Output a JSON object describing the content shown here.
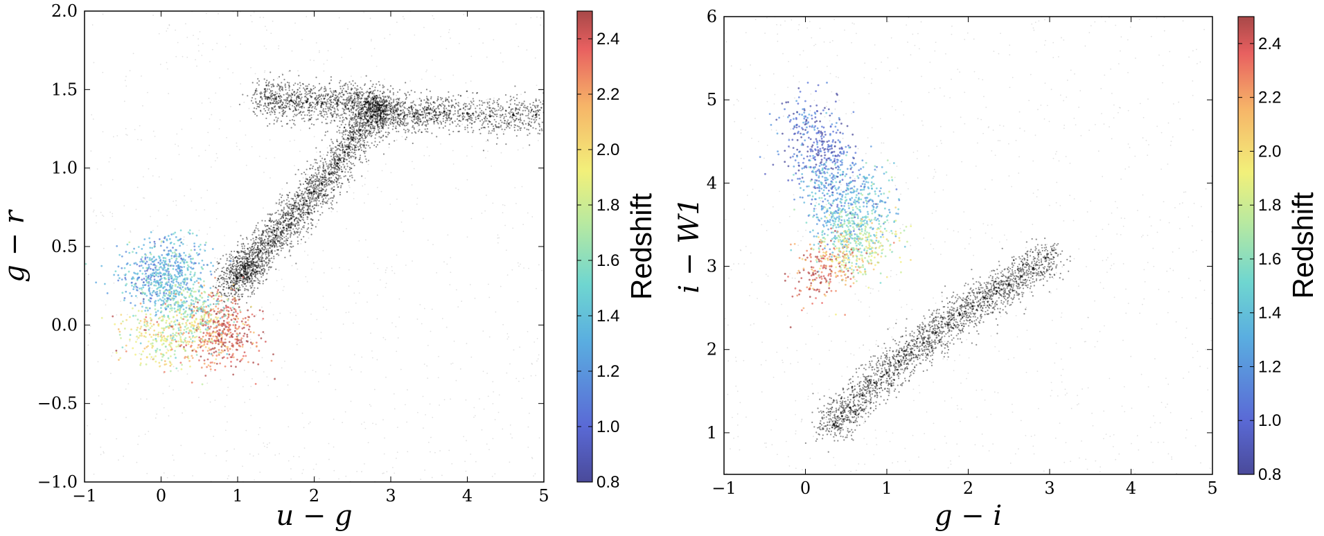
{
  "chart_data": [
    {
      "type": "scatter",
      "xlabel": "u − g",
      "ylabel": "g − r",
      "xlim": [
        -1,
        5
      ],
      "ylim": [
        -1.0,
        2.0
      ],
      "xticks": [
        "−1",
        "0",
        "1",
        "2",
        "3",
        "4",
        "5"
      ],
      "xtick_values": [
        -1,
        0,
        1,
        2,
        3,
        4,
        5
      ],
      "yticks": [
        "−1.0",
        "−0.5",
        "0.0",
        "0.5",
        "1.0",
        "1.5",
        "2.0"
      ],
      "ytick_values": [
        -1.0,
        -0.5,
        0.0,
        0.5,
        1.0,
        1.5,
        2.0
      ],
      "grid": false,
      "colorbar": {
        "label": "Redshift",
        "range": [
          0.8,
          2.5
        ],
        "ticks": [
          "0.8",
          "1.0",
          "1.2",
          "1.4",
          "1.6",
          "1.8",
          "2.0",
          "2.2",
          "2.4"
        ],
        "tick_values": [
          0.8,
          1.0,
          1.2,
          1.4,
          1.6,
          1.8,
          2.0,
          2.2,
          2.4
        ],
        "colormap": "jet"
      },
      "series": [
        {
          "kind": "stars",
          "color": "#000000",
          "x": [
            0.95,
            1.0,
            1.05,
            1.1,
            1.15,
            1.2,
            1.3,
            1.4,
            1.5,
            1.6,
            1.7,
            1.8,
            1.9,
            2.0,
            2.1,
            2.2,
            2.3,
            2.4,
            2.5,
            2.6,
            2.7,
            2.75,
            2.8,
            2.85,
            2.9,
            2.85,
            2.7,
            2.5,
            2.3,
            2.1,
            1.9,
            1.7,
            1.5,
            1.4,
            3.1,
            3.3,
            3.5,
            3.7,
            4.0,
            4.3,
            4.6,
            4.9
          ],
          "y": [
            0.25,
            0.3,
            0.32,
            0.36,
            0.38,
            0.42,
            0.47,
            0.52,
            0.57,
            0.62,
            0.68,
            0.74,
            0.79,
            0.85,
            0.9,
            0.96,
            1.03,
            1.1,
            1.18,
            1.24,
            1.3,
            1.33,
            1.36,
            1.37,
            1.36,
            1.4,
            1.42,
            1.42,
            1.41,
            1.41,
            1.42,
            1.43,
            1.44,
            1.45,
            1.34,
            1.33,
            1.35,
            1.36,
            1.35,
            1.33,
            1.34,
            1.34
          ]
        },
        {
          "kind": "quasars",
          "x": [
            -0.3,
            -0.1,
            0.0,
            0.1,
            0.2,
            0.3,
            -0.2,
            0.0,
            0.2,
            0.4,
            0.6,
            0.7,
            0.8,
            0.9,
            1.0,
            0.1,
            0.3,
            0.5
          ],
          "y": [
            0.3,
            0.35,
            0.25,
            0.3,
            0.2,
            0.15,
            -0.05,
            -0.1,
            -0.05,
            0.0,
            -0.05,
            -0.1,
            0.05,
            0.0,
            -0.1,
            0.45,
            0.4,
            0.1
          ],
          "z": [
            1.3,
            1.2,
            1.3,
            1.4,
            1.5,
            1.5,
            1.9,
            1.9,
            1.8,
            1.9,
            2.3,
            2.4,
            2.3,
            2.4,
            2.4,
            1.4,
            1.3,
            1.6
          ]
        }
      ]
    },
    {
      "type": "scatter",
      "xlabel": "g − i",
      "ylabel": "i − W1",
      "xlim": [
        -1,
        5
      ],
      "ylim": [
        0.5,
        6.0
      ],
      "xticks": [
        "−1",
        "0",
        "1",
        "2",
        "3",
        "4",
        "5"
      ],
      "xtick_values": [
        -1,
        0,
        1,
        2,
        3,
        4,
        5
      ],
      "yticks": [
        "1",
        "2",
        "3",
        "4",
        "5",
        "6"
      ],
      "ytick_values": [
        1,
        2,
        3,
        4,
        5,
        6
      ],
      "grid": false,
      "colorbar": {
        "label": "Redshift",
        "range": [
          0.8,
          2.5
        ],
        "ticks": [
          "0.8",
          "1.0",
          "1.2",
          "1.4",
          "1.6",
          "1.8",
          "2.0",
          "2.2",
          "2.4"
        ],
        "tick_values": [
          0.8,
          1.0,
          1.2,
          1.4,
          1.6,
          1.8,
          2.0,
          2.2,
          2.4
        ],
        "colormap": "jet"
      },
      "series": [
        {
          "kind": "stars",
          "color": "#000000",
          "x": [
            0.35,
            0.45,
            0.55,
            0.7,
            0.85,
            1.0,
            1.15,
            1.3,
            1.45,
            1.6,
            1.75,
            1.9,
            2.05,
            2.2,
            2.35,
            2.5,
            2.65,
            2.8,
            2.95
          ],
          "y": [
            1.1,
            1.2,
            1.3,
            1.45,
            1.6,
            1.72,
            1.85,
            1.97,
            2.08,
            2.2,
            2.3,
            2.42,
            2.52,
            2.62,
            2.7,
            2.78,
            2.88,
            2.98,
            3.1
          ]
        },
        {
          "kind": "quasars",
          "x": [
            0.0,
            0.1,
            0.2,
            0.3,
            0.4,
            0.5,
            0.6,
            0.7,
            0.8,
            0.9,
            0.1,
            0.3,
            0.5,
            0.2,
            0.4,
            0.6
          ],
          "y": [
            4.8,
            4.3,
            4.0,
            3.7,
            3.5,
            3.3,
            3.2,
            3.5,
            3.8,
            3.3,
            2.9,
            3.0,
            3.1,
            4.5,
            4.2,
            3.9
          ],
          "z": [
            1.0,
            1.0,
            1.2,
            1.3,
            1.4,
            1.6,
            1.7,
            1.5,
            1.4,
            1.8,
            2.4,
            2.3,
            2.0,
            0.9,
            1.1,
            1.3
          ]
        }
      ]
    }
  ]
}
